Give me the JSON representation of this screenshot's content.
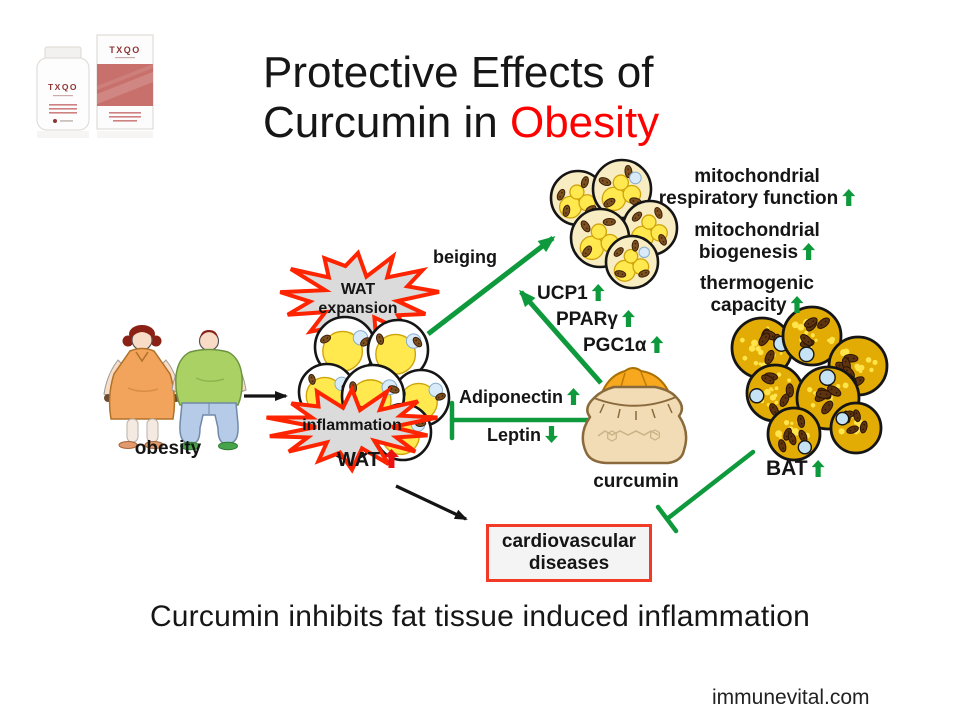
{
  "slide": {
    "title_line1": "Protective Effects of",
    "title_line2_prefix": "Curcumin in ",
    "title_line2_highlight": "Obesity",
    "caption": "Curcumin inhibits fat tissue induced inflammation",
    "watermark": "immunevital.com"
  },
  "product": {
    "bottle_label": "TXQO",
    "box_label": "TXQO"
  },
  "diagram": {
    "obesity": "obesity",
    "wat_expansion_line1": "WAT",
    "wat_expansion_line2": "expansion",
    "inflammation": "inflammation",
    "wat": {
      "label": "WAT",
      "trend": "up"
    },
    "beiging": "beiging",
    "ucp1": {
      "label": "UCP1",
      "trend": "up"
    },
    "ppar_gamma": {
      "label": "PPARγ",
      "trend": "up"
    },
    "pgc1_alpha": {
      "label": "PGC1α",
      "trend": "up"
    },
    "mito_respiratory_line1": "mitochondrial",
    "mito_respiratory_line2": "respiratory function",
    "mito_respiratory_trend": "up",
    "mito_biogenesis_line1": "mitochondrial",
    "mito_biogenesis_line2": "biogenesis",
    "mito_biogenesis_trend": "up",
    "thermogenic_line1": "thermogenic",
    "thermogenic_line2": "capacity",
    "thermogenic_trend": "up",
    "adiponectin": {
      "label": "Adiponectin",
      "trend": "up"
    },
    "leptin": {
      "label": "Leptin",
      "trend": "down"
    },
    "curcumin": "curcumin",
    "bat": {
      "label": "BAT",
      "trend": "up"
    },
    "cardio_line1": "cardiovascular",
    "cardio_line2": "diseases"
  },
  "colors": {
    "arrow_green": "#0e9a3c",
    "trend_red": "#ec1212",
    "burst_border": "#ff2400",
    "cardio_border": "#f23b26",
    "title_highlight": "#ff0000"
  }
}
